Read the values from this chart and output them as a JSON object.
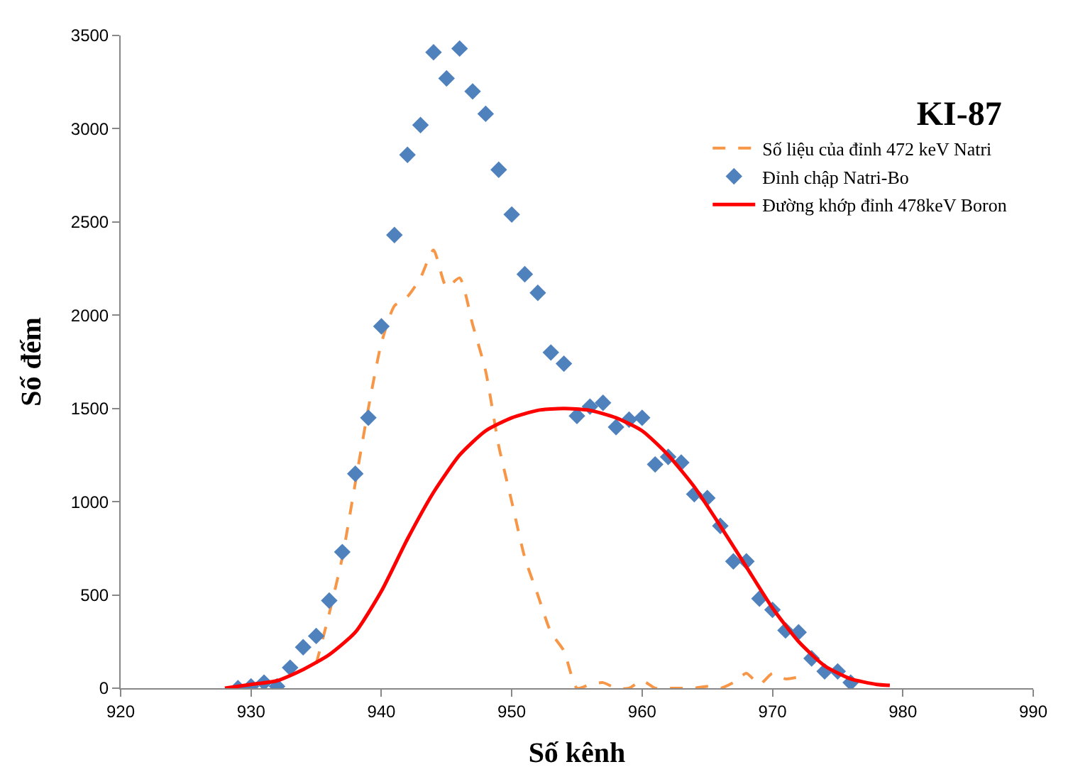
{
  "chart_data": {
    "type": "line",
    "title": "KI-87",
    "xlabel": "Số kênh",
    "ylabel": "Số đếm",
    "xlim": [
      920,
      990
    ],
    "xticks": [
      920,
      930,
      940,
      950,
      960,
      970,
      980,
      990
    ],
    "ylim": [
      0,
      3500
    ],
    "yticks": [
      0,
      500,
      1000,
      1500,
      2000,
      2500,
      3000,
      3500
    ],
    "grid": false,
    "legend": "top right",
    "series": [
      {
        "name": "Số liệu của đỉnh 472 keV Natri",
        "line_style": "dashed",
        "marker": "none",
        "color": "#f79646",
        "x": [
          935,
          936,
          937,
          938,
          939,
          940,
          941,
          942,
          943,
          944,
          945,
          946,
          947,
          948,
          949,
          950,
          951,
          952,
          953,
          954,
          955,
          956,
          957,
          958,
          959,
          960,
          961,
          962,
          963,
          964,
          965,
          966,
          967,
          968,
          969,
          970,
          971,
          972
        ],
        "values": [
          130,
          400,
          700,
          1100,
          1500,
          1850,
          2050,
          2100,
          2200,
          2350,
          2150,
          2200,
          1950,
          1700,
          1300,
          1000,
          700,
          500,
          300,
          200,
          0,
          20,
          30,
          0,
          0,
          40,
          0,
          0,
          0,
          0,
          10,
          0,
          30,
          80,
          20,
          80,
          50,
          60
        ]
      },
      {
        "name": "Đỉnh chập Natri-Bo",
        "type": "scatter",
        "marker": "diamond",
        "color": "#4f81bd",
        "x": [
          929,
          930,
          931,
          932,
          933,
          934,
          935,
          936,
          937,
          938,
          939,
          940,
          941,
          942,
          943,
          944,
          945,
          946,
          947,
          948,
          949,
          950,
          951,
          952,
          953,
          954,
          955,
          956,
          957,
          958,
          959,
          960,
          961,
          962,
          963,
          964,
          965,
          966,
          967,
          968,
          969,
          970,
          971,
          972,
          973,
          974,
          975,
          976
        ],
        "values": [
          0,
          10,
          30,
          10,
          110,
          220,
          280,
          470,
          730,
          1150,
          1450,
          1940,
          2430,
          2860,
          3020,
          3410,
          3270,
          3430,
          3200,
          3080,
          2780,
          2540,
          2220,
          2120,
          1800,
          1740,
          1460,
          1510,
          1530,
          1400,
          1440,
          1450,
          1200,
          1240,
          1210,
          1040,
          1020,
          870,
          680,
          680,
          480,
          420,
          310,
          300,
          160,
          90,
          90,
          30
        ]
      },
      {
        "name": "Đường khớp đỉnh 478keV Boron",
        "line_style": "solid",
        "marker": "none",
        "color": "#ff0000",
        "x": [
          928,
          930,
          932,
          934,
          936,
          938,
          940,
          942,
          944,
          946,
          948,
          950,
          952,
          954,
          956,
          958,
          960,
          962,
          964,
          966,
          968,
          970,
          972,
          974,
          976,
          978,
          979
        ],
        "values": [
          0,
          20,
          40,
          100,
          180,
          300,
          520,
          800,
          1050,
          1250,
          1380,
          1450,
          1490,
          1500,
          1490,
          1450,
          1380,
          1250,
          1080,
          870,
          650,
          430,
          250,
          120,
          50,
          20,
          15
        ]
      }
    ]
  }
}
